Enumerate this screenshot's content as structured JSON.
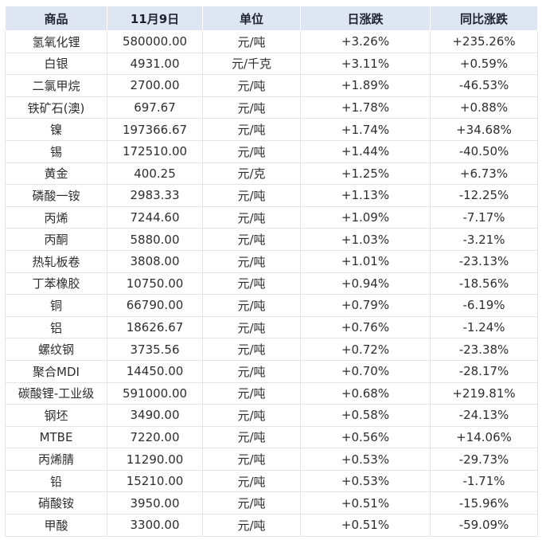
{
  "colors": {
    "up_red": "#f53030",
    "down_green": "#12914a",
    "header_bg": "#dee6f3",
    "grid_border": "#e4e4e4"
  },
  "chart_data": {
    "type": "table",
    "title": "",
    "columns": [
      "商品",
      "11月9日",
      "单位",
      "日涨跌",
      "同比涨跌"
    ],
    "rows": [
      {
        "name": "氢氧化锂",
        "price": "580000.00",
        "unit": "元/吨",
        "daily": "+3.26%",
        "yoy": "+235.26%"
      },
      {
        "name": "白银",
        "price": "4931.00",
        "unit": "元/千克",
        "daily": "+3.11%",
        "yoy": "+0.59%"
      },
      {
        "name": "二氯甲烷",
        "price": "2700.00",
        "unit": "元/吨",
        "daily": "+1.89%",
        "yoy": "-46.53%"
      },
      {
        "name": "铁矿石(澳)",
        "price": "697.67",
        "unit": "元/吨",
        "daily": "+1.78%",
        "yoy": "+0.88%"
      },
      {
        "name": "镍",
        "price": "197366.67",
        "unit": "元/吨",
        "daily": "+1.74%",
        "yoy": "+34.68%"
      },
      {
        "name": "锡",
        "price": "172510.00",
        "unit": "元/吨",
        "daily": "+1.44%",
        "yoy": "-40.50%"
      },
      {
        "name": "黄金",
        "price": "400.25",
        "unit": "元/克",
        "daily": "+1.25%",
        "yoy": "+6.73%"
      },
      {
        "name": "磷酸一铵",
        "price": "2983.33",
        "unit": "元/吨",
        "daily": "+1.13%",
        "yoy": "-12.25%"
      },
      {
        "name": "丙烯",
        "price": "7244.60",
        "unit": "元/吨",
        "daily": "+1.09%",
        "yoy": "-7.17%"
      },
      {
        "name": "丙酮",
        "price": "5880.00",
        "unit": "元/吨",
        "daily": "+1.03%",
        "yoy": "-3.21%"
      },
      {
        "name": "热轧板卷",
        "price": "3808.00",
        "unit": "元/吨",
        "daily": "+1.01%",
        "yoy": "-23.13%"
      },
      {
        "name": "丁苯橡胶",
        "price": "10750.00",
        "unit": "元/吨",
        "daily": "+0.94%",
        "yoy": "-18.56%"
      },
      {
        "name": "铜",
        "price": "66790.00",
        "unit": "元/吨",
        "daily": "+0.79%",
        "yoy": "-6.19%"
      },
      {
        "name": "铝",
        "price": "18626.67",
        "unit": "元/吨",
        "daily": "+0.76%",
        "yoy": "-1.24%"
      },
      {
        "name": "螺纹钢",
        "price": "3735.56",
        "unit": "元/吨",
        "daily": "+0.72%",
        "yoy": "-23.38%"
      },
      {
        "name": "聚合MDI",
        "price": "14450.00",
        "unit": "元/吨",
        "daily": "+0.70%",
        "yoy": "-28.17%"
      },
      {
        "name": "碳酸锂-工业级",
        "price": "591000.00",
        "unit": "元/吨",
        "daily": "+0.68%",
        "yoy": "+219.81%"
      },
      {
        "name": "钢坯",
        "price": "3490.00",
        "unit": "元/吨",
        "daily": "+0.58%",
        "yoy": "-24.13%"
      },
      {
        "name": "MTBE",
        "price": "7220.00",
        "unit": "元/吨",
        "daily": "+0.56%",
        "yoy": "+14.06%"
      },
      {
        "name": "丙烯腈",
        "price": "11290.00",
        "unit": "元/吨",
        "daily": "+0.53%",
        "yoy": "-29.73%"
      },
      {
        "name": "铅",
        "price": "15210.00",
        "unit": "元/吨",
        "daily": "+0.53%",
        "yoy": "-1.71%"
      },
      {
        "name": "硝酸铵",
        "price": "3950.00",
        "unit": "元/吨",
        "daily": "+0.51%",
        "yoy": "-15.96%"
      },
      {
        "name": "甲酸",
        "price": "3300.00",
        "unit": "元/吨",
        "daily": "+0.51%",
        "yoy": "-59.09%"
      }
    ]
  }
}
